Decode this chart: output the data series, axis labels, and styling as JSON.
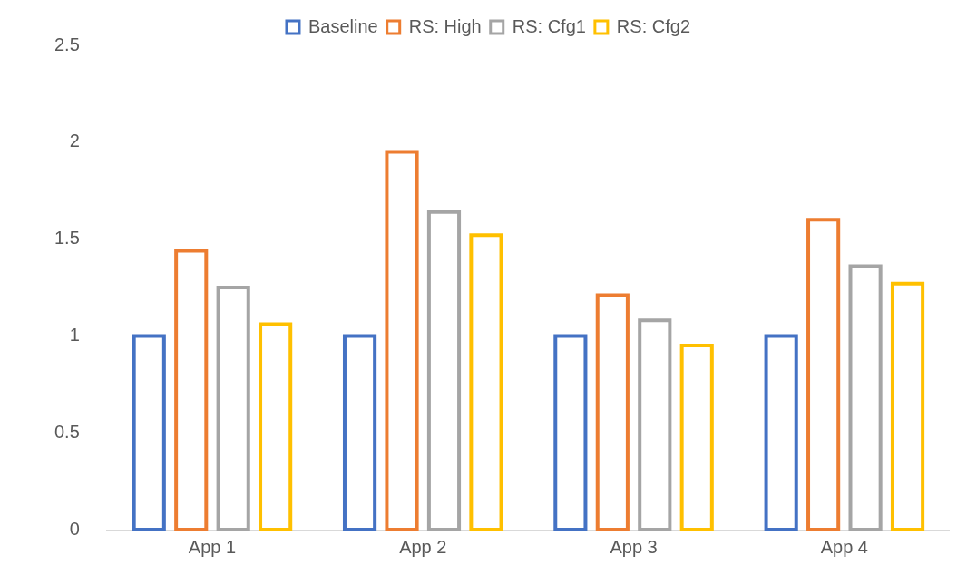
{
  "chart_data": {
    "type": "bar",
    "categories": [
      "App 1",
      "App 2",
      "App 3",
      "App 4"
    ],
    "series": [
      {
        "name": "Baseline",
        "color": "#4472c4",
        "values": [
          1,
          1,
          1,
          1
        ]
      },
      {
        "name": "RS: High",
        "color": "#ed7d31",
        "values": [
          1.44,
          1.95,
          1.21,
          1.6
        ]
      },
      {
        "name": "RS: Cfg1",
        "color": "#a5a5a5",
        "values": [
          1.25,
          1.64,
          1.08,
          1.36
        ]
      },
      {
        "name": "RS: Cfg2",
        "color": "#ffc000",
        "values": [
          1.06,
          1.52,
          0.95,
          1.27
        ]
      }
    ],
    "ylim": [
      0,
      2.5
    ],
    "yticks": [
      0,
      0.5,
      1,
      1.5,
      2,
      2.5
    ],
    "grid": false,
    "legend": "top"
  }
}
